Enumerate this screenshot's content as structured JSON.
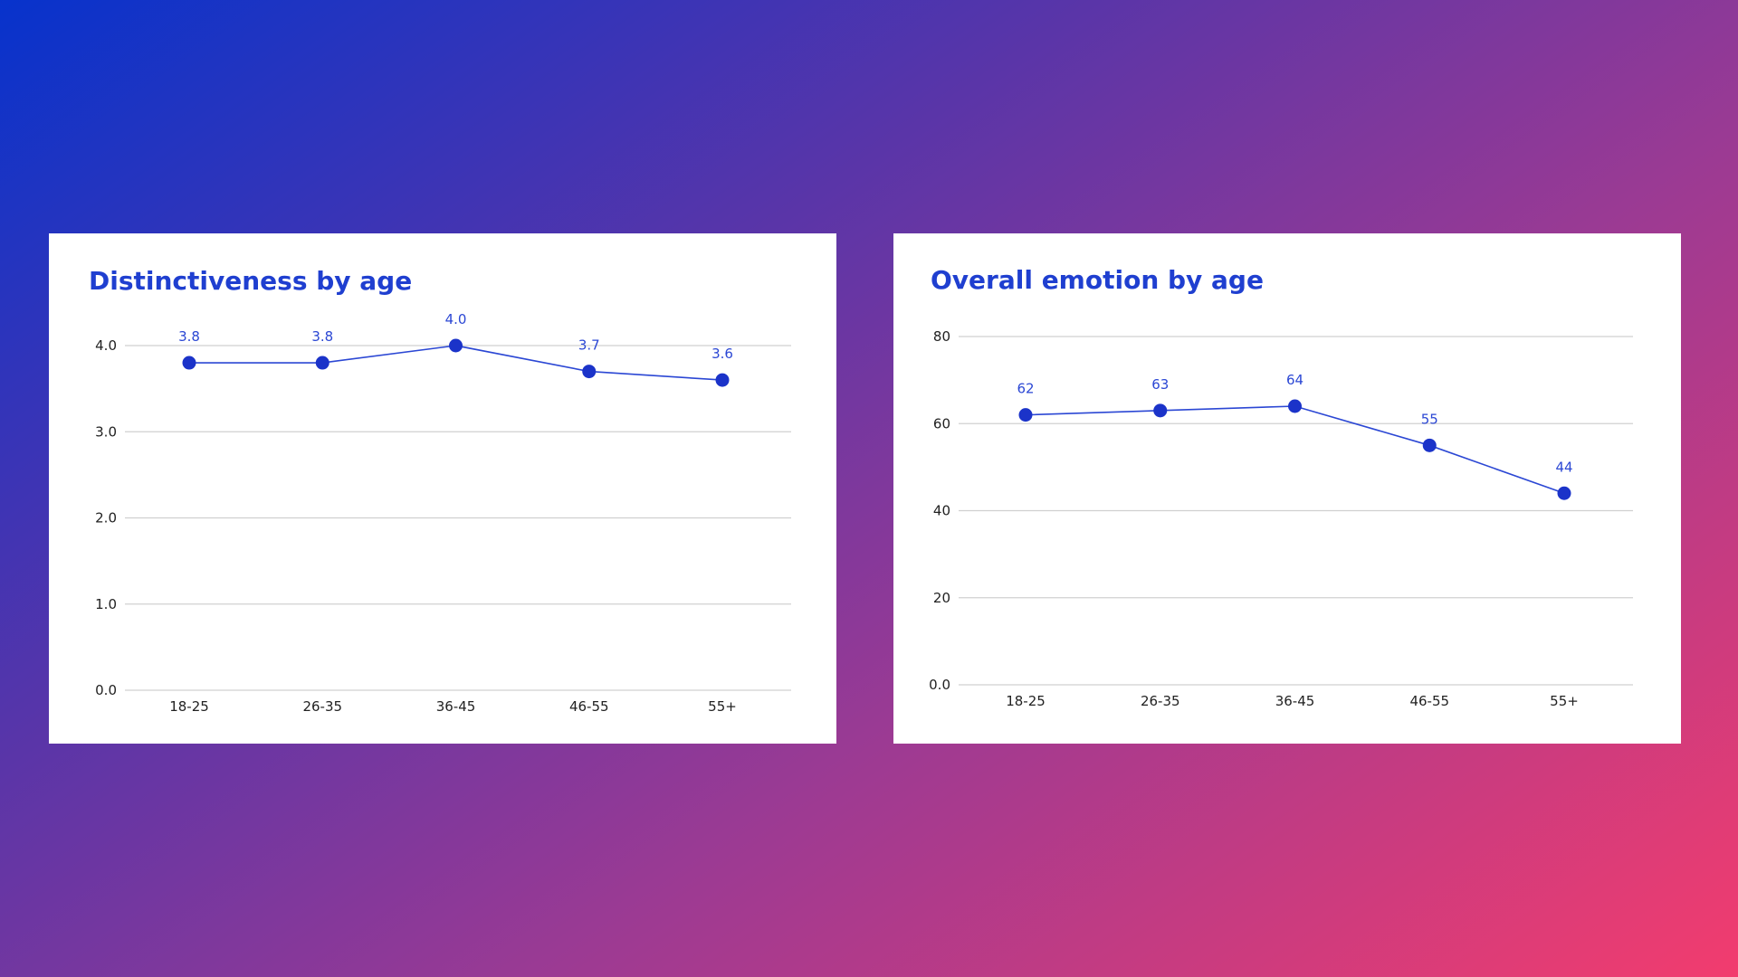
{
  "colors": {
    "accent": "#1f3fd0",
    "line": "#2b47d4",
    "point": "#1b33c9",
    "grid": "#d0d0d0",
    "card_background": "#ffffff",
    "background_start": "#0733cc",
    "background_end": "#f23c6e"
  },
  "chart_data": [
    {
      "type": "line",
      "title": "Distinctiveness by age",
      "categories": [
        "18-25",
        "26-35",
        "36-45",
        "46-55",
        "55+"
      ],
      "values": [
        3.8,
        3.8,
        4.0,
        3.7,
        3.6
      ],
      "value_labels": [
        "3.8",
        "3.8",
        "4.0",
        "3.7",
        "3.6"
      ],
      "yticks": [
        0,
        1,
        2,
        3,
        4
      ],
      "ytick_labels": [
        "0.0",
        "1.0",
        "2.0",
        "3.0",
        "4.0"
      ],
      "ylim": [
        0,
        4
      ],
      "grid": true,
      "legend": "none",
      "xlabel": "",
      "ylabel": ""
    },
    {
      "type": "line",
      "title": "Overall emotion by age",
      "categories": [
        "18-25",
        "26-35",
        "36-45",
        "46-55",
        "55+"
      ],
      "values": [
        62,
        63,
        64,
        55,
        44
      ],
      "value_labels": [
        "62",
        "63",
        "64",
        "55",
        "44"
      ],
      "yticks": [
        0,
        20,
        40,
        60,
        80
      ],
      "ytick_labels": [
        "0.0",
        "20",
        "40",
        "60",
        "80"
      ],
      "ylim": [
        0,
        80
      ],
      "grid": true,
      "legend": "none",
      "xlabel": "",
      "ylabel": ""
    }
  ]
}
